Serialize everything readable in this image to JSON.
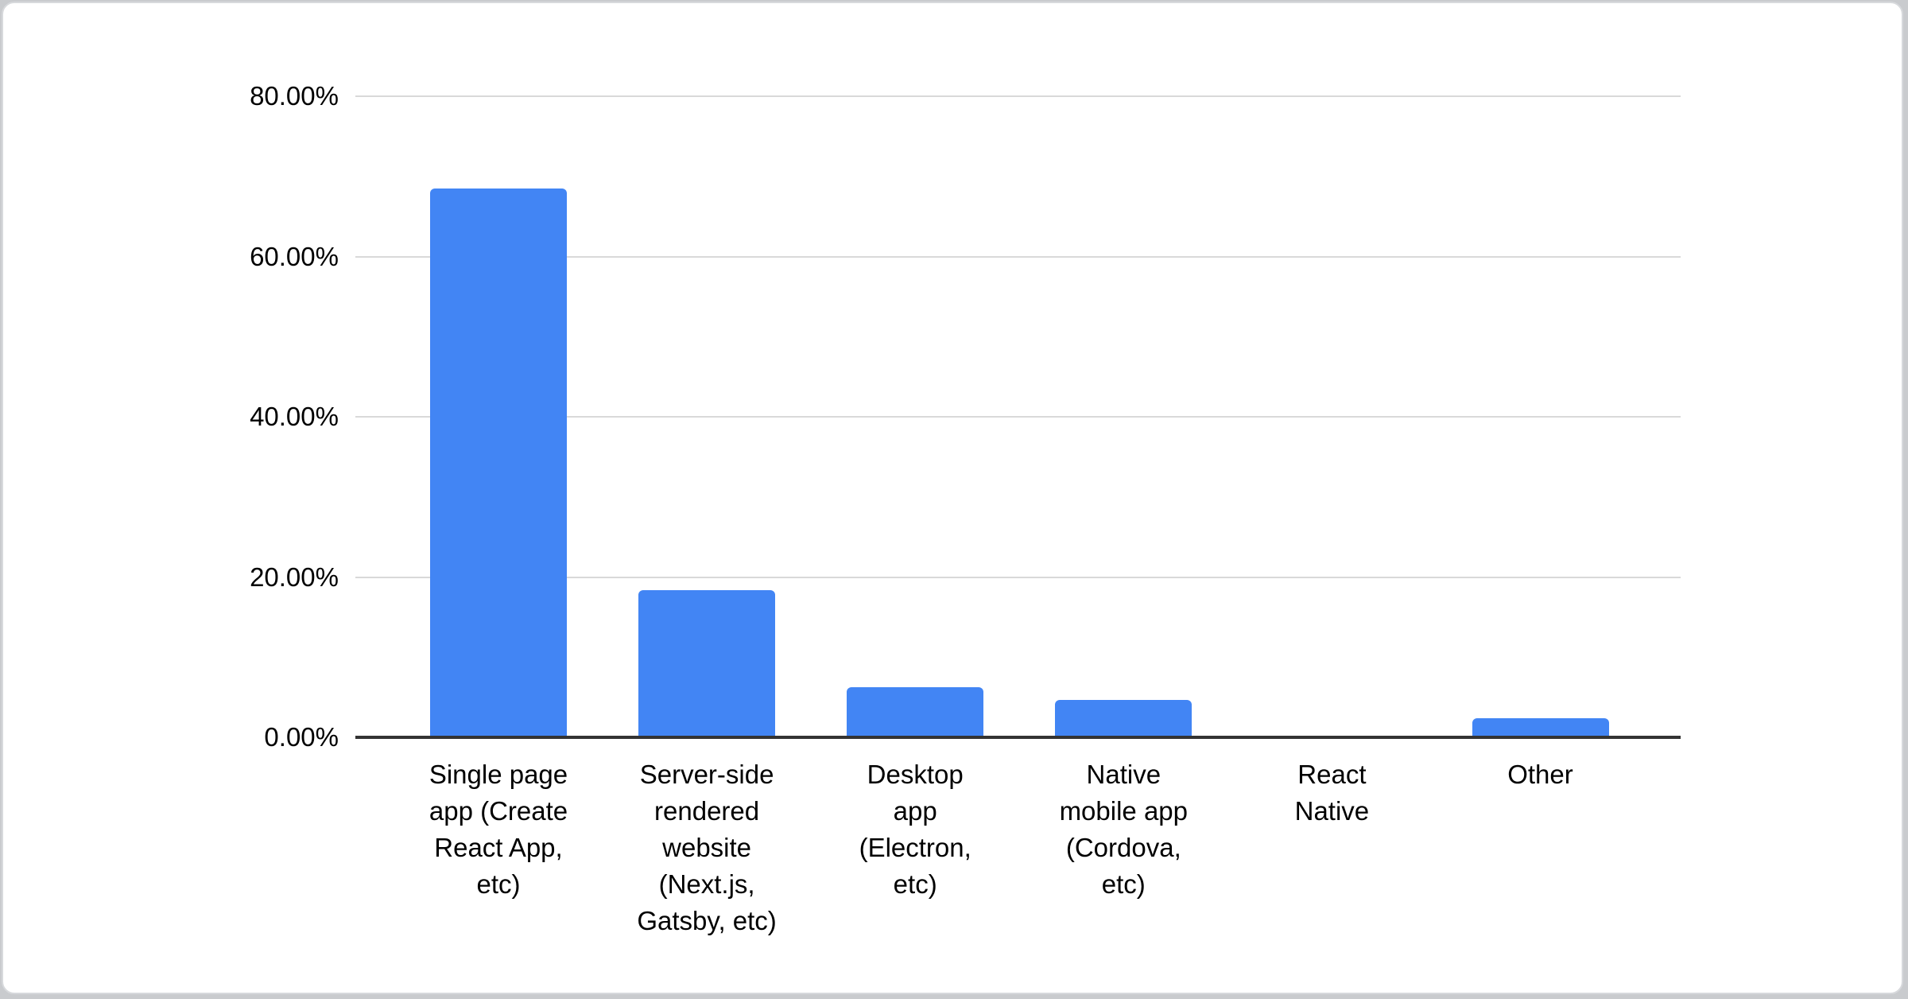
{
  "chart_data": {
    "type": "bar",
    "title": "",
    "xlabel": "",
    "ylabel": "",
    "legend": "none",
    "grid": true,
    "unit": "%",
    "ylim": [
      0,
      80
    ],
    "y_ticks": [
      {
        "value": 0,
        "label": "0.00%"
      },
      {
        "value": 20,
        "label": "20.00%"
      },
      {
        "value": 40,
        "label": "40.00%"
      },
      {
        "value": 60,
        "label": "60.00%"
      },
      {
        "value": 80,
        "label": "80.00%"
      }
    ],
    "categories": [
      {
        "label": "Single page app (Create React App, etc)",
        "wrapped": "Single page\napp (Create\nReact App,\netc)"
      },
      {
        "label": "Server-side rendered website (Next.js, Gatsby, etc)",
        "wrapped": "Server-side\nrendered\nwebsite\n(Next.js,\nGatsby, etc)"
      },
      {
        "label": "Desktop app (Electron, etc)",
        "wrapped": "Desktop\napp\n(Electron,\netc)"
      },
      {
        "label": "Native mobile app (Cordova, etc)",
        "wrapped": "Native\nmobile app\n(Cordova,\netc)"
      },
      {
        "label": "React Native",
        "wrapped": "React\nNative"
      },
      {
        "label": "Other",
        "wrapped": "Other"
      }
    ],
    "values": [
      68.5,
      18.4,
      6.3,
      4.7,
      0,
      2.4
    ],
    "colors": {
      "bar": "#4285f4",
      "gridline": "#d9d9d9",
      "axis_line": "#333333",
      "text": "#000000",
      "card_background": "#ffffff",
      "card_border": "#d7d9dc",
      "page_background": "#c9cbce"
    }
  }
}
